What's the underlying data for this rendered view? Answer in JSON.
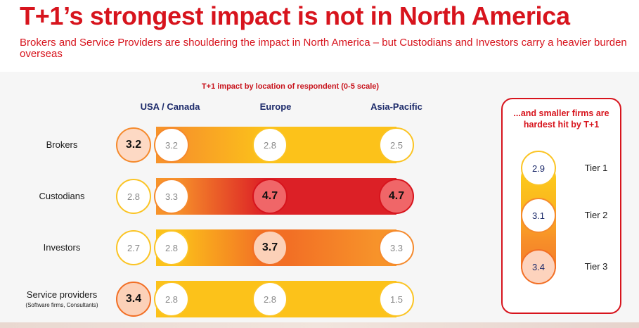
{
  "title": "T+1’s strongest impact is not in North America",
  "subtitle": "Brokers and Service Providers are shouldering the impact in North America – but  Custodians and Investors carry a heavier burden overseas",
  "chart_data": [
    {
      "type": "table",
      "title": "T+1 impact by location of respondent (0-5 scale)",
      "columns": [
        "USA / Canada",
        "Europe",
        "Asia-Pacific"
      ],
      "rows": [
        {
          "label": "Brokers",
          "sublabel": "",
          "overall": "3.2",
          "values": [
            "3.2",
            "2.8",
            "2.5"
          ]
        },
        {
          "label": "Custodians",
          "sublabel": "",
          "overall": "2.8",
          "values": [
            "3.3",
            "4.7",
            "4.7"
          ]
        },
        {
          "label": "Investors",
          "sublabel": "",
          "overall": "2.7",
          "values": [
            "2.8",
            "3.7",
            "3.3"
          ]
        },
        {
          "label": "Service providers",
          "sublabel": "(Software firms, Consultants)",
          "overall": "3.4",
          "values": [
            "2.8",
            "2.8",
            "1.5"
          ]
        }
      ],
      "ylim": [
        0,
        5
      ]
    },
    {
      "type": "table",
      "title": "...and smaller firms are hardest hit by T+1",
      "categories": [
        "Tier 1",
        "Tier 2",
        "Tier 3"
      ],
      "values": [
        "2.9",
        "3.1",
        "3.4"
      ]
    }
  ],
  "colors": {
    "brand_red": "#d7141d",
    "low": "#fcd21a",
    "mid": "#f7932a",
    "high": "#dc2026",
    "navy": "#1d2b6b"
  }
}
